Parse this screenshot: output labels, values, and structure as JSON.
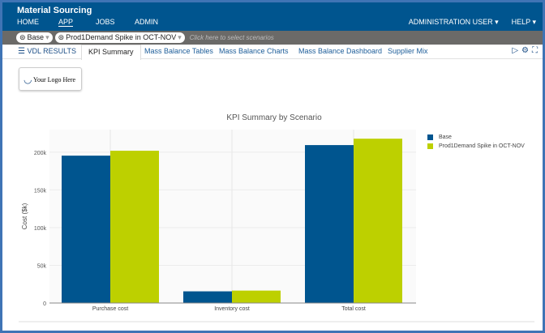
{
  "header": {
    "app_title": "Material Sourcing",
    "nav": [
      "HOME",
      "APP",
      "JOBS",
      "ADMIN"
    ],
    "active_nav": "APP",
    "user_menu": "ADMINISTRATION USER ▾",
    "help_menu": "HELP ▾"
  },
  "scenarios": {
    "base": "Base",
    "comparison": "Prod1Demand Spike in OCT-NOV",
    "placeholder": "Click here to select scenarios"
  },
  "tabs": {
    "menu": "VDL RESULTS",
    "items": [
      "KPI Summary",
      "Mass Balance Tables",
      "Mass Balance Charts",
      "Mass Balance Dashboard",
      "Supplier Mix"
    ],
    "active": "KPI Summary"
  },
  "logo": {
    "text": "Your Logo Here"
  },
  "colors": {
    "header": "#00558f",
    "base": "#00558f",
    "scenario": "#bdd000"
  },
  "chart_data": {
    "type": "bar",
    "title": "KPI Summary by Scenario",
    "ylabel": "Cost ($k)",
    "xlabel": "",
    "categories": [
      "Purchase cost",
      "Inventory cost",
      "Total cost"
    ],
    "series": [
      {
        "name": "Base",
        "color": "#00558f",
        "values": [
          195500,
          15500,
          209500
        ]
      },
      {
        "name": "Prod1Demand Spike in OCT-NOV",
        "color": "#bdd000",
        "values": [
          202000,
          16500,
          218000
        ]
      }
    ],
    "ylim": [
      0,
      230000
    ],
    "yticks": [
      0,
      50000,
      100000,
      150000,
      200000
    ],
    "ytick_labels": [
      "0",
      "50k",
      "100k",
      "150k",
      "200k"
    ],
    "grid": true,
    "legend": "right"
  }
}
